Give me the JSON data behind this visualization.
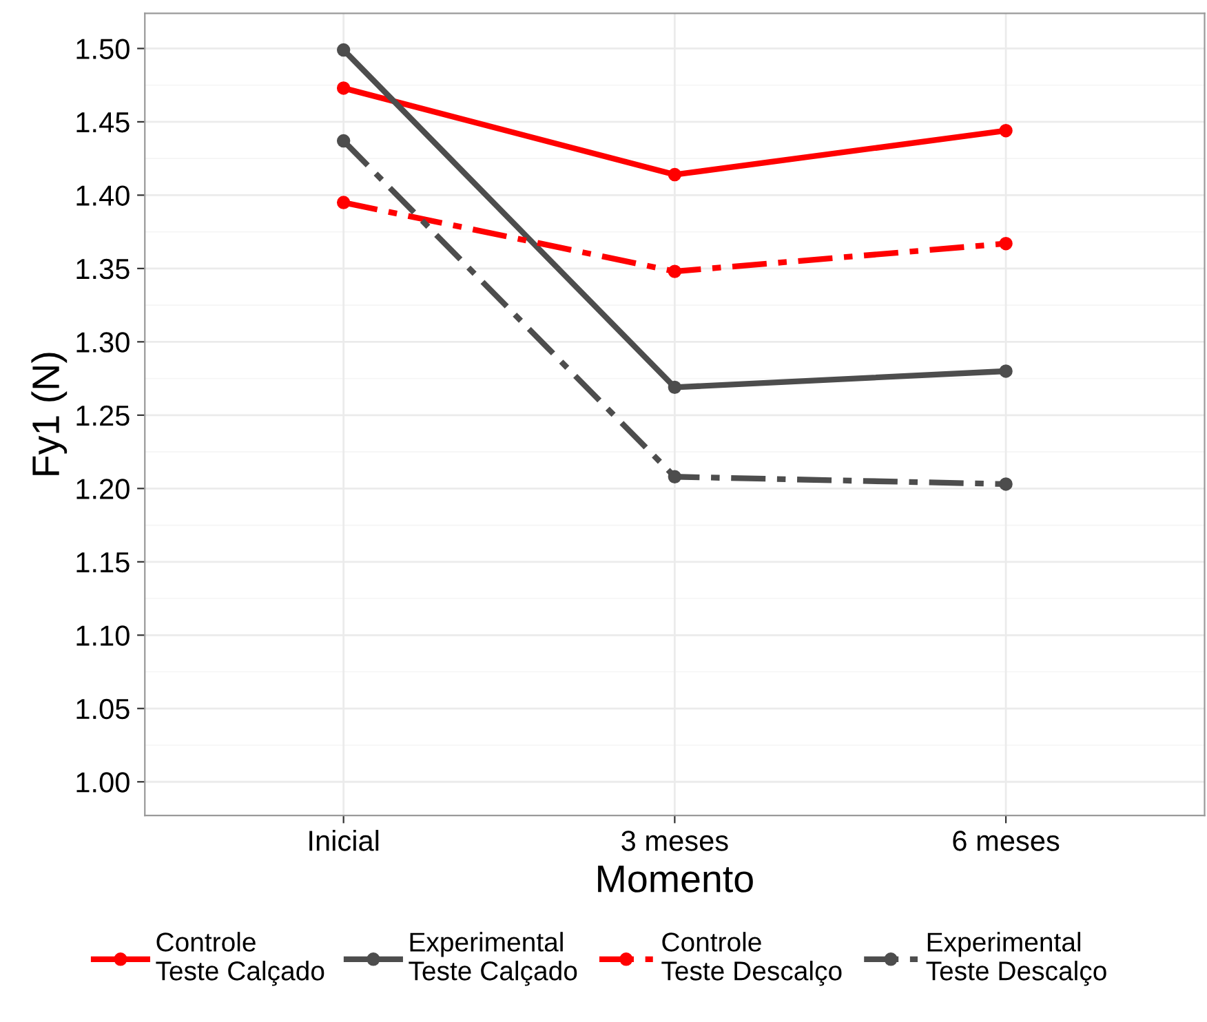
{
  "chart_data": {
    "type": "line",
    "xlabel": "Momento",
    "ylabel": "Fy1 (N)",
    "categories": [
      "Inicial",
      "3 meses",
      "6 meses"
    ],
    "series": [
      {
        "name": "Controle\nTeste Calçado",
        "color": "#ff0000",
        "line_style": "solid",
        "values": [
          1.473,
          1.414,
          1.444
        ]
      },
      {
        "name": "Experimental\nTeste Calçado",
        "color": "#4d4d4d",
        "line_style": "solid",
        "values": [
          1.499,
          1.269,
          1.28
        ]
      },
      {
        "name": "Controle\nTeste Descalço",
        "color": "#ff0000",
        "line_style": "dashdot",
        "values": [
          1.395,
          1.348,
          1.367
        ]
      },
      {
        "name": "Experimental\nTeste Descalço",
        "color": "#4d4d4d",
        "line_style": "dashdot",
        "values": [
          1.437,
          1.208,
          1.203
        ]
      }
    ],
    "ylim": [
      0.977,
      1.524
    ],
    "yticks": [
      {
        "value": 1.0,
        "label": "1.00"
      },
      {
        "value": 1.05,
        "label": "1.05"
      },
      {
        "value": 1.1,
        "label": "1.10"
      },
      {
        "value": 1.15,
        "label": "1.15"
      },
      {
        "value": 1.2,
        "label": "1.20"
      },
      {
        "value": 1.25,
        "label": "1.25"
      },
      {
        "value": 1.3,
        "label": "1.30"
      },
      {
        "value": 1.35,
        "label": "1.35"
      },
      {
        "value": 1.4,
        "label": "1.40"
      },
      {
        "value": 1.45,
        "label": "1.45"
      },
      {
        "value": 1.5,
        "label": "1.50"
      }
    ],
    "grid": true,
    "legend": "bottom",
    "marker": "circle"
  }
}
